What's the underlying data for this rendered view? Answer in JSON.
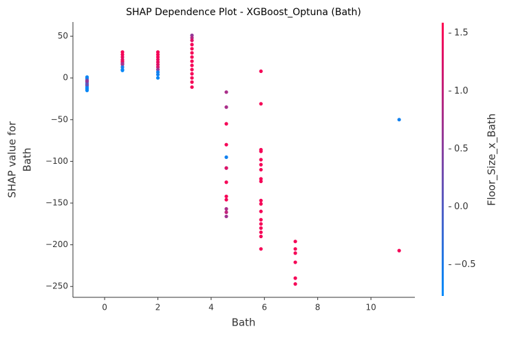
{
  "chart_data": {
    "type": "scatter",
    "title": "SHAP Dependence Plot - XGBoost_Optuna (Bath)",
    "x_label": "Bath",
    "y_label": [
      "SHAP value for",
      "Bath"
    ],
    "xlim": [
      -1.19,
      11.65
    ],
    "ylim": [
      -263,
      67
    ],
    "xticks": [
      0,
      2,
      4,
      6,
      8,
      10
    ],
    "yticks": [
      {
        "value": -250,
        "label": "−250"
      },
      {
        "value": -200,
        "label": "−200"
      },
      {
        "value": -150,
        "label": "−150"
      },
      {
        "value": -100,
        "label": "−100"
      },
      {
        "value": -50,
        "label": "−50"
      },
      0,
      50
    ],
    "x": [
      -0.66,
      -0.66,
      -0.66,
      -0.66,
      -0.66,
      -0.66,
      -0.66,
      -0.66,
      -0.66,
      -0.66,
      -0.66,
      0.67,
      0.67,
      0.67,
      0.67,
      0.67,
      0.67,
      0.67,
      0.67,
      0.67,
      0.67,
      0.67,
      2.0,
      2.0,
      2.0,
      2.0,
      2.0,
      2.0,
      2.0,
      2.0,
      2.0,
      2.0,
      2.0,
      3.28,
      3.28,
      3.28,
      3.28,
      3.28,
      3.28,
      3.28,
      3.28,
      3.28,
      3.28,
      3.28,
      3.28,
      3.28,
      3.28,
      4.57,
      4.57,
      4.57,
      4.57,
      4.57,
      4.57,
      4.57,
      4.57,
      4.57,
      4.57,
      4.57,
      4.57,
      4.57,
      5.87,
      5.87,
      5.87,
      5.87,
      5.87,
      5.87,
      5.87,
      5.87,
      5.87,
      5.87,
      5.87,
      5.87,
      5.87,
      5.87,
      5.87,
      5.87,
      5.87,
      5.87,
      7.16,
      7.16,
      7.16,
      7.16,
      7.16,
      7.16,
      11.06,
      11.06
    ],
    "values": [
      1,
      -1,
      -3,
      -5,
      -7,
      -9,
      -11,
      -13,
      -15,
      -4,
      -8,
      31,
      28,
      25,
      22,
      19,
      16,
      13,
      10,
      9,
      20,
      17,
      31,
      28,
      25,
      22,
      19,
      16,
      13,
      10,
      7,
      4,
      0,
      51,
      48,
      45,
      40,
      35,
      30,
      25,
      20,
      15,
      10,
      5,
      0,
      -5,
      -11,
      -17,
      -35,
      -55,
      -80,
      -95,
      -108,
      -108,
      -125,
      -142,
      -146,
      -157,
      -161,
      -166,
      8,
      -31,
      -86,
      -88,
      -98,
      -104,
      -110,
      -121,
      -124,
      -147,
      -151,
      -160,
      -170,
      -175,
      -180,
      -185,
      -190,
      -205,
      -196,
      -205,
      -210,
      -221,
      -240,
      -247,
      -50,
      -207
    ],
    "color_values": [
      -0.7,
      -0.6,
      0.3,
      0.5,
      -0.6,
      0.4,
      -0.7,
      -0.7,
      -0.7,
      0.6,
      0.2,
      1.5,
      1.5,
      1.4,
      1.3,
      1.0,
      0.5,
      -0.5,
      -0.6,
      -0.7,
      1.4,
      0.8,
      1.5,
      1.5,
      1.5,
      1.4,
      1.4,
      1.3,
      1.2,
      0.6,
      -0.6,
      -0.6,
      -0.7,
      0.6,
      0.9,
      1.3,
      1.5,
      1.5,
      1.5,
      1.5,
      1.5,
      1.5,
      1.5,
      1.5,
      1.5,
      1.5,
      1.5,
      0.8,
      0.8,
      1.5,
      1.5,
      -0.6,
      -0.3,
      1.3,
      1.5,
      1.5,
      1.5,
      0.8,
      1.0,
      0.7,
      1.5,
      1.5,
      1.5,
      1.5,
      1.5,
      1.5,
      1.5,
      1.5,
      1.5,
      1.5,
      1.5,
      1.5,
      1.5,
      1.5,
      1.5,
      1.5,
      1.5,
      1.5,
      1.5,
      1.5,
      1.5,
      1.5,
      1.5,
      1.5,
      -0.6,
      1.5
    ],
    "colorbar": {
      "label": "Floor_Size_x_Bath",
      "lim": [
        -0.77,
        1.59
      ],
      "ticks": [
        {
          "value": -0.5,
          "label": "−0.5"
        },
        {
          "value": 0,
          "label": "0.0"
        },
        0.5,
        {
          "value": 1,
          "label": "1.0"
        },
        1.5
      ],
      "colors": [
        "#008bfb",
        "#ff0051"
      ]
    }
  }
}
